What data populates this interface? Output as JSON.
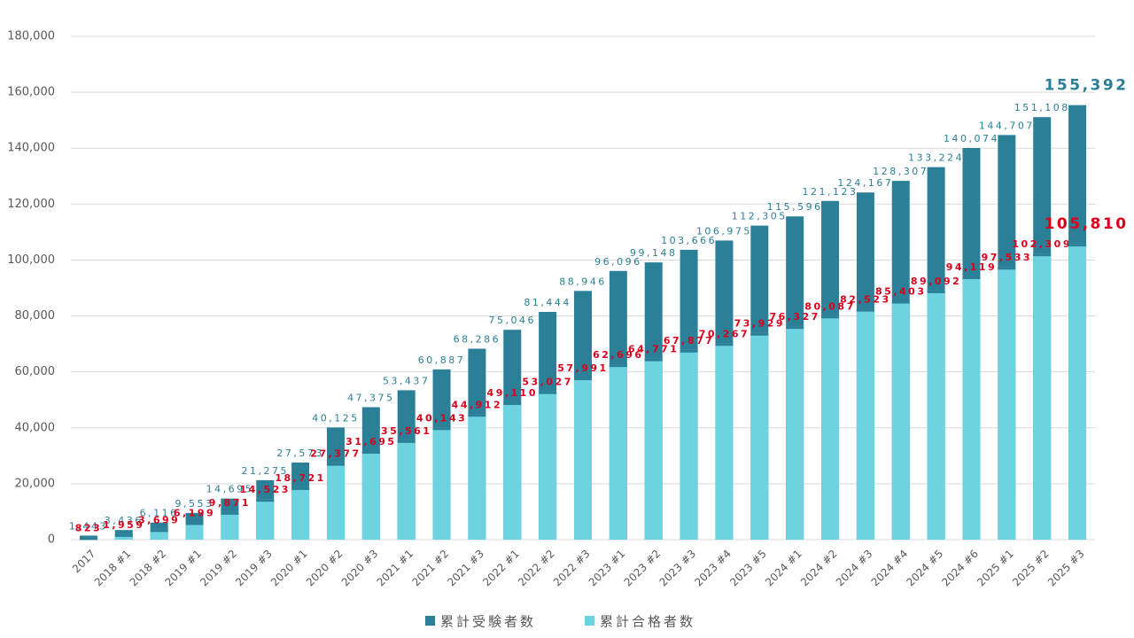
{
  "chart_data": {
    "type": "bar",
    "categories": [
      "2017",
      "2018 #1",
      "2018 #2",
      "2019 #1",
      "2019 #2",
      "2019 #3",
      "2020 #1",
      "2020 #2",
      "2020 #3",
      "2021 #1",
      "2021 #2",
      "2021 #3",
      "2022 #1",
      "2022 #2",
      "2022 #3",
      "2023 #1",
      "2023 #2",
      "2023 #3",
      "2023 #4",
      "2023 #5",
      "2024 #1",
      "2024 #2",
      "2024 #3",
      "2024 #4",
      "2024 #5",
      "2024 #6",
      "2025 #1",
      "2025 #2",
      "2025 #3"
    ],
    "series": [
      {
        "name": "累計受験者数",
        "color": "#2b8098",
        "label_color": "#2a7f96",
        "values": [
          1443,
          3436,
          6116,
          9553,
          14695,
          21275,
          27573,
          40125,
          47375,
          53437,
          60887,
          68286,
          75046,
          81444,
          88946,
          96096,
          99148,
          103666,
          106975,
          112305,
          115596,
          121123,
          124167,
          128307,
          133224,
          140074,
          144707,
          151108,
          155392
        ],
        "value_labels": [
          "1,443",
          "3,436",
          "6,116",
          "9,553",
          "14,695",
          "21,275",
          "27,573",
          "40,125",
          "47,375",
          "53,437",
          "60,887",
          "68,286",
          "75,046",
          "81,444",
          "88,946",
          "96,096",
          "99,148",
          "103,666",
          "106,975",
          "112,305",
          "115,596",
          "121,123",
          "124,167",
          "128,307",
          "133,224",
          "140,074",
          "144,707",
          "151,108",
          "155,392"
        ]
      },
      {
        "name": "累計合格者数",
        "color": "#6dd3e0",
        "label_color": "#d9001b",
        "values": [
          823,
          1959,
          3699,
          6199,
          9871,
          14523,
          18721,
          27377,
          31695,
          35561,
          40143,
          44912,
          49110,
          53027,
          57991,
          62696,
          64771,
          67877,
          70267,
          73929,
          76327,
          80087,
          82523,
          85403,
          89092,
          94119,
          97533,
          102309,
          105810
        ],
        "value_labels": [
          "823",
          "1,959",
          "3,699",
          "6,199",
          "9,871",
          "14,523",
          "18,721",
          "27,377",
          "31,695",
          "35,561",
          "40,143",
          "44,912",
          "49,110",
          "53,027",
          "57,991",
          "62,696",
          "64,771",
          "67,877",
          "70,267",
          "73,929",
          "76,327",
          "80,087",
          "82,523",
          "85,403",
          "89,092",
          "94,119",
          "97,533",
          "102,309",
          "105,810"
        ]
      }
    ],
    "ylim": [
      0,
      180000
    ],
    "yticks": [
      0,
      {
        "value": 20000,
        "label": "20,000"
      },
      {
        "value": 40000,
        "label": "40,000"
      },
      {
        "value": 60000,
        "label": "60,000"
      },
      {
        "value": 80000,
        "label": "80,000"
      },
      {
        "value": 100000,
        "label": "100,000"
      },
      {
        "value": 120000,
        "label": "120,000"
      },
      {
        "value": 140000,
        "label": "140,000"
      },
      {
        "value": 160000,
        "label": "160,000"
      },
      {
        "value": 180000,
        "label": "180,000"
      }
    ],
    "grid": true,
    "legend": "bottom"
  }
}
